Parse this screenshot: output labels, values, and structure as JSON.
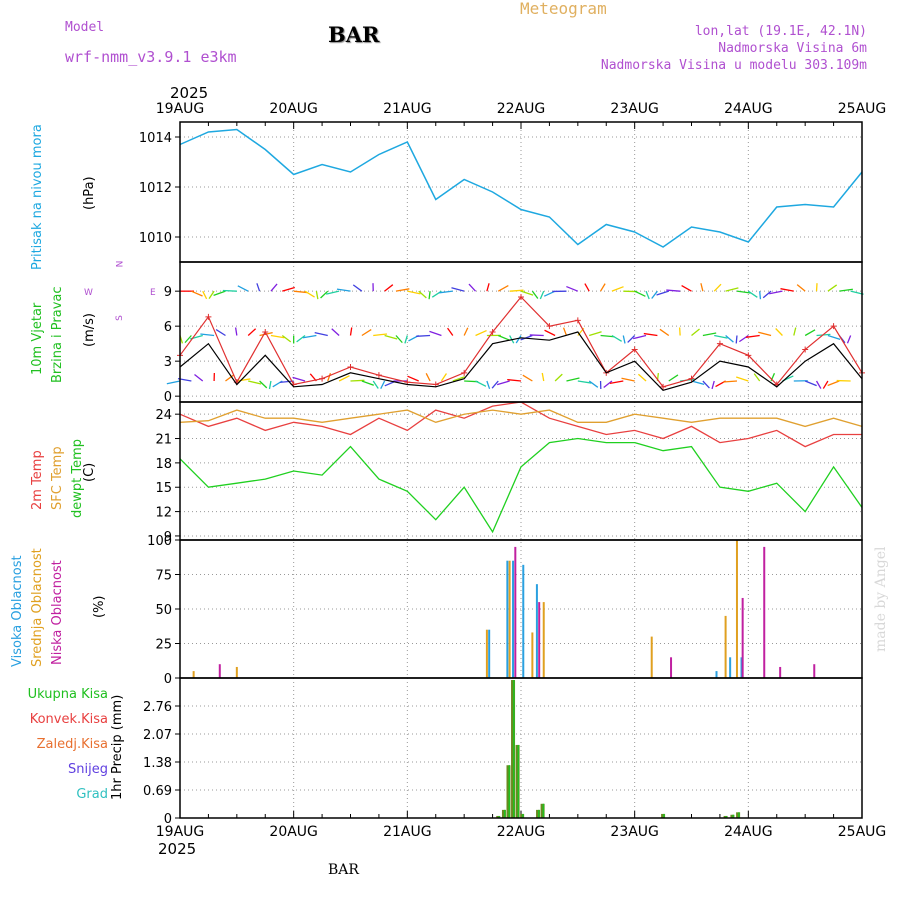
{
  "header": {
    "model_label": "Model",
    "model_name": "wrf-nmm_v3.9.1 e3km",
    "station": "BAR",
    "title": "Meteogram",
    "lonlat": "lon,lat (19.1E, 42.1N)",
    "elev": "Nadmorska Visina 6m",
    "elev_model": "Nadmorska Visina u modelu 303.109m",
    "watermark": "made by Angel",
    "footer_station": "BAR",
    "year": "2025"
  },
  "x_ticks": [
    "19AUG",
    "20AUG",
    "21AUG",
    "22AUG",
    "23AUG",
    "24AUG",
    "25AUG"
  ],
  "labels": {
    "pressure": "Pritisak na nivou mora",
    "pressure_unit": "(hPa)",
    "wind_1": "10m Vjetar",
    "wind_2": "Brzina i Pravac",
    "wind_unit": "(m/s)",
    "compass_n": "N",
    "compass_s": "S",
    "compass_w": "W",
    "compass_e": "E",
    "temp_2m": "2m Temp",
    "temp_sfc": "SFC Temp",
    "temp_dew": "dewpt Temp",
    "temp_unit": "(C)",
    "cloud_high": "Visoka Oblacnost",
    "cloud_mid": "Srednja Oblacnost",
    "cloud_low": "Niska Oblacnost",
    "cloud_unit": "(%)",
    "precip_total": "Ukupna Kisa",
    "precip_conv": "Konvek.Kisa",
    "precip_frz": "Zaledj.Kisa",
    "precip_snow": "Snijeg",
    "precip_grad": "Grad",
    "precip_unit": "1hr Precip (mm)"
  },
  "colors": {
    "pressure": "#1ea8e0",
    "gust": "#e03030",
    "wind": "#000000",
    "temp2m": "#e84040",
    "sfc": "#e0a030",
    "dew": "#20d020",
    "cloud_high": "#2aa0e0",
    "cloud_mid": "#e0a020",
    "cloud_low": "#c020a0",
    "precip_total": "#20c020",
    "precip_conv": "#e84040",
    "precip_frz": "#e87030",
    "precip_snow": "#6040e0",
    "precip_grad": "#30c0c0",
    "label_purple": "#b050d0",
    "compass": "#b050d0"
  },
  "chart_data": [
    {
      "type": "line",
      "panel": "pressure",
      "ylabel": "(hPa)",
      "ylim": [
        1009,
        1014.6
      ],
      "yticks": [
        1010,
        1012,
        1014
      ],
      "x": [
        0,
        0.25,
        0.5,
        0.75,
        1,
        1.25,
        1.5,
        1.75,
        2,
        2.25,
        2.5,
        2.75,
        3,
        3.25,
        3.5,
        3.75,
        4,
        4.25,
        4.5,
        4.75,
        5,
        5.25,
        5.5,
        5.75,
        6
      ],
      "series": [
        {
          "values": [
            1013.7,
            1014.2,
            1014.3,
            1013.5,
            1012.5,
            1012.9,
            1012.6,
            1013.3,
            1013.8,
            1011.5,
            1012.3,
            1011.8,
            1011.1,
            1010.8,
            1009.7,
            1010.5,
            1010.2,
            1009.6,
            1010.4,
            1010.2,
            1009.8,
            1011.2,
            1011.3,
            1011.2,
            1012.6
          ]
        }
      ]
    },
    {
      "type": "line",
      "panel": "wind",
      "ylabel": "(m/s)",
      "ylim": [
        -0.5,
        11.5
      ],
      "yticks": [
        0,
        3,
        6,
        9
      ],
      "x": [
        0,
        0.25,
        0.5,
        0.75,
        1,
        1.25,
        1.5,
        1.75,
        2,
        2.25,
        2.5,
        2.75,
        3,
        3.25,
        3.5,
        3.75,
        4,
        4.25,
        4.5,
        4.75,
        5,
        5.25,
        5.5,
        5.75,
        6
      ],
      "series": [
        {
          "name": "gust",
          "values": [
            3.5,
            6.8,
            1.2,
            5.5,
            1.0,
            1.5,
            2.5,
            1.8,
            1.2,
            1.0,
            2.0,
            5.5,
            8.5,
            6.0,
            6.5,
            2.0,
            4.0,
            0.8,
            1.5,
            4.5,
            3.5,
            1.0,
            4.0,
            6.0,
            2.0
          ]
        },
        {
          "name": "wind",
          "values": [
            2.5,
            4.5,
            1.0,
            3.5,
            0.8,
            1.0,
            2.0,
            1.5,
            1.0,
            0.8,
            1.5,
            4.5,
            5.0,
            4.8,
            5.5,
            2.0,
            3.0,
            0.5,
            1.2,
            3.0,
            2.5,
            0.8,
            3.0,
            4.5,
            1.5
          ]
        }
      ]
    },
    {
      "type": "line",
      "panel": "temperature",
      "ylabel": "(C)",
      "ylim": [
        8.5,
        25.5
      ],
      "yticks": [
        9,
        12,
        15,
        18,
        21,
        24
      ],
      "x": [
        0,
        0.25,
        0.5,
        0.75,
        1,
        1.25,
        1.5,
        1.75,
        2,
        2.25,
        2.5,
        2.75,
        3,
        3.25,
        3.5,
        3.75,
        4,
        4.25,
        4.5,
        4.75,
        5,
        5.25,
        5.5,
        5.75,
        6
      ],
      "series": [
        {
          "name": "2m Temp",
          "values": [
            24.0,
            22.5,
            23.5,
            22.0,
            23.0,
            22.5,
            21.5,
            23.5,
            22.0,
            24.5,
            23.5,
            25.0,
            25.5,
            23.5,
            22.5,
            21.5,
            22.0,
            21.0,
            22.5,
            20.5,
            21.0,
            22.0,
            20.0,
            21.5,
            21.5
          ]
        },
        {
          "name": "SFC Temp",
          "values": [
            23.0,
            23.2,
            24.5,
            23.5,
            23.5,
            23.0,
            23.5,
            24.0,
            24.5,
            23.0,
            24.0,
            24.5,
            24.0,
            24.5,
            23.0,
            23.0,
            24.0,
            23.5,
            23.0,
            23.5,
            23.5,
            23.5,
            22.5,
            23.5,
            22.5
          ]
        },
        {
          "name": "dewpt Temp",
          "values": [
            18.5,
            15.0,
            15.5,
            16.0,
            17.0,
            16.5,
            20.0,
            16.0,
            14.5,
            11.0,
            15.0,
            9.5,
            17.5,
            20.5,
            21.0,
            20.5,
            20.5,
            19.5,
            20.0,
            15.0,
            14.5,
            15.5,
            12.0,
            17.5,
            12.5
          ]
        }
      ]
    },
    {
      "type": "bar",
      "panel": "cloud",
      "ylabel": "(%)",
      "ylim": [
        0,
        100
      ],
      "yticks": [
        0,
        25,
        50,
        75,
        100
      ],
      "series": [
        {
          "name": "Visoka Oblacnost",
          "x": [
            2.72,
            2.88,
            2.93,
            3.02,
            3.14,
            4.72,
            4.84,
            4.94
          ],
          "values": [
            35,
            85,
            85,
            82,
            68,
            5,
            15,
            15
          ]
        },
        {
          "name": "Srednja Oblacnost",
          "x": [
            0.12,
            0.5,
            2.7,
            2.9,
            3.1,
            3.2,
            4.15,
            4.8,
            4.9
          ],
          "values": [
            5,
            8,
            35,
            85,
            33,
            55,
            30,
            45,
            100
          ]
        },
        {
          "name": "Niska Oblacnost",
          "x": [
            0.35,
            2.95,
            3.16,
            4.32,
            4.95,
            5.14,
            5.28,
            5.58
          ],
          "values": [
            10,
            95,
            55,
            15,
            58,
            95,
            8,
            10
          ]
        }
      ]
    },
    {
      "type": "bar",
      "panel": "precipitation",
      "ylabel": "1hr Precip (mm)",
      "ylim": [
        0,
        3.45
      ],
      "yticks": [
        0,
        0.69,
        1.38,
        2.07,
        2.76
      ],
      "series": [
        {
          "name": "Ukupna Kisa",
          "x": [
            2.8,
            2.85,
            2.89,
            2.93,
            2.97,
            3.01,
            3.15,
            3.19,
            4.25,
            4.8,
            4.86,
            4.91
          ],
          "values": [
            0.05,
            0.2,
            1.3,
            3.4,
            1.8,
            0.1,
            0.2,
            0.35,
            0.1,
            0.05,
            0.08,
            0.14
          ]
        }
      ]
    }
  ]
}
